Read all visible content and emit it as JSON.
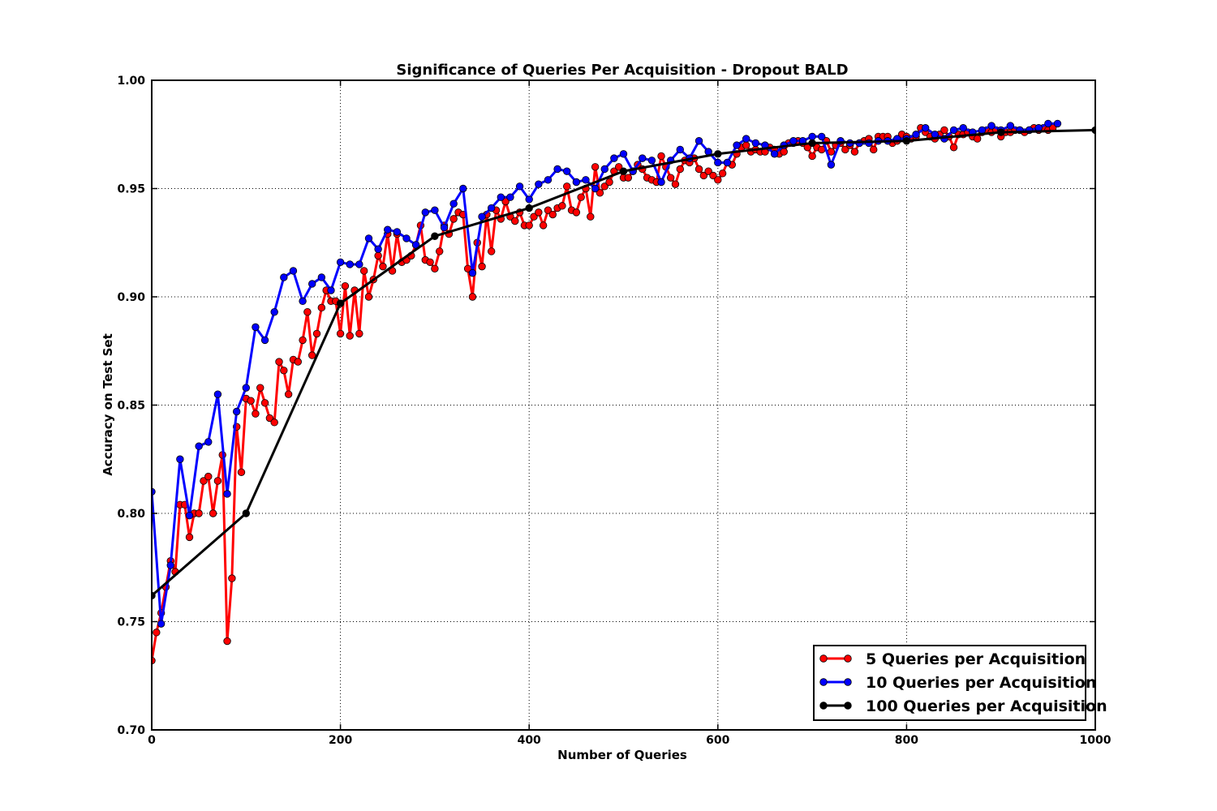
{
  "chart_data": {
    "type": "line",
    "title": "Significance of Queries Per Acquisition - Dropout BALD",
    "xlabel": "Number of Queries",
    "ylabel": "Accuracy on Test Set",
    "xlim": [
      0,
      1000
    ],
    "ylim": [
      0.7,
      1.0
    ],
    "x_ticks": [
      "0",
      "200",
      "400",
      "600",
      "800",
      "1000"
    ],
    "y_ticks": [
      "0.70",
      "0.75",
      "0.80",
      "0.85",
      "0.90",
      "0.95",
      "1.00"
    ],
    "grid": true,
    "grid_style": "dotted",
    "legend_position": "lower-right",
    "series": [
      {
        "name": "5 Queries per Acquisition",
        "color": "#ff0000",
        "x_start": 0,
        "x_step": 5,
        "values": [
          0.732,
          0.745,
          0.754,
          0.766,
          0.778,
          0.773,
          0.804,
          0.804,
          0.789,
          0.8,
          0.8,
          0.815,
          0.817,
          0.8,
          0.815,
          0.827,
          0.741,
          0.77,
          0.84,
          0.819,
          0.853,
          0.852,
          0.846,
          0.858,
          0.851,
          0.844,
          0.842,
          0.87,
          0.866,
          0.855,
          0.871,
          0.87,
          0.88,
          0.893,
          0.873,
          0.883,
          0.895,
          0.903,
          0.898,
          0.898,
          0.883,
          0.905,
          0.882,
          0.903,
          0.883,
          0.912,
          0.9,
          0.908,
          0.919,
          0.914,
          0.929,
          0.912,
          0.929,
          0.916,
          0.917,
          0.919,
          0.924,
          0.933,
          0.917,
          0.916,
          0.913,
          0.921,
          0.933,
          0.929,
          0.936,
          0.939,
          0.938,
          0.913,
          0.9,
          0.925,
          0.914,
          0.938,
          0.921,
          0.94,
          0.936,
          0.944,
          0.937,
          0.935,
          0.939,
          0.933,
          0.933,
          0.937,
          0.939,
          0.933,
          0.94,
          0.938,
          0.941,
          0.942,
          0.951,
          0.94,
          0.939,
          0.946,
          0.95,
          0.937,
          0.96,
          0.948,
          0.951,
          0.953,
          0.958,
          0.96,
          0.955,
          0.955,
          0.958,
          0.961,
          0.959,
          0.955,
          0.954,
          0.953,
          0.965,
          0.96,
          0.955,
          0.952,
          0.959,
          0.963,
          0.962,
          0.964,
          0.959,
          0.956,
          0.958,
          0.956,
          0.954,
          0.957,
          0.962,
          0.961,
          0.966,
          0.969,
          0.97,
          0.967,
          0.968,
          0.967,
          0.967,
          0.969,
          0.968,
          0.966,
          0.967,
          0.971,
          0.971,
          0.972,
          0.971,
          0.969,
          0.965,
          0.969,
          0.968,
          0.972,
          0.967,
          0.97,
          0.971,
          0.968,
          0.97,
          0.967,
          0.971,
          0.972,
          0.973,
          0.968,
          0.974,
          0.974,
          0.974,
          0.971,
          0.972,
          0.975,
          0.974,
          0.973,
          0.974,
          0.978,
          0.976,
          0.974,
          0.973,
          0.975,
          0.977,
          0.974,
          0.969,
          0.975,
          0.975,
          0.976,
          0.974,
          0.973,
          0.976,
          0.977,
          0.976,
          0.977,
          0.974,
          0.976,
          0.976,
          0.977,
          0.977,
          0.976,
          0.977,
          0.978,
          0.977,
          0.978,
          0.977,
          0.978
        ]
      },
      {
        "name": "10 Queries per Acquisition",
        "color": "#0000ff",
        "x_start": 0,
        "x_step": 10,
        "values": [
          0.81,
          0.749,
          0.776,
          0.825,
          0.799,
          0.831,
          0.833,
          0.855,
          0.809,
          0.847,
          0.858,
          0.886,
          0.88,
          0.893,
          0.909,
          0.912,
          0.898,
          0.906,
          0.909,
          0.903,
          0.916,
          0.915,
          0.915,
          0.927,
          0.922,
          0.931,
          0.93,
          0.927,
          0.924,
          0.939,
          0.94,
          0.932,
          0.943,
          0.95,
          0.911,
          0.937,
          0.941,
          0.946,
          0.946,
          0.951,
          0.945,
          0.952,
          0.954,
          0.959,
          0.958,
          0.953,
          0.954,
          0.95,
          0.959,
          0.964,
          0.966,
          0.958,
          0.964,
          0.963,
          0.953,
          0.963,
          0.968,
          0.964,
          0.972,
          0.967,
          0.962,
          0.962,
          0.97,
          0.973,
          0.971,
          0.97,
          0.966,
          0.97,
          0.972,
          0.972,
          0.974,
          0.974,
          0.961,
          0.972,
          0.971,
          0.971,
          0.971,
          0.972,
          0.972,
          0.973,
          0.973,
          0.975,
          0.978,
          0.975,
          0.973,
          0.977,
          0.978,
          0.976,
          0.977,
          0.979,
          0.977,
          0.979,
          0.977,
          0.977,
          0.978,
          0.98,
          0.98
        ]
      },
      {
        "name": "100 Queries per Acquisition",
        "color": "#000000",
        "x_start": 0,
        "x_step": 100,
        "values": [
          0.762,
          0.8,
          0.897,
          0.928,
          0.941,
          0.958,
          0.966,
          0.971,
          0.972,
          0.976,
          0.977
        ]
      }
    ]
  }
}
